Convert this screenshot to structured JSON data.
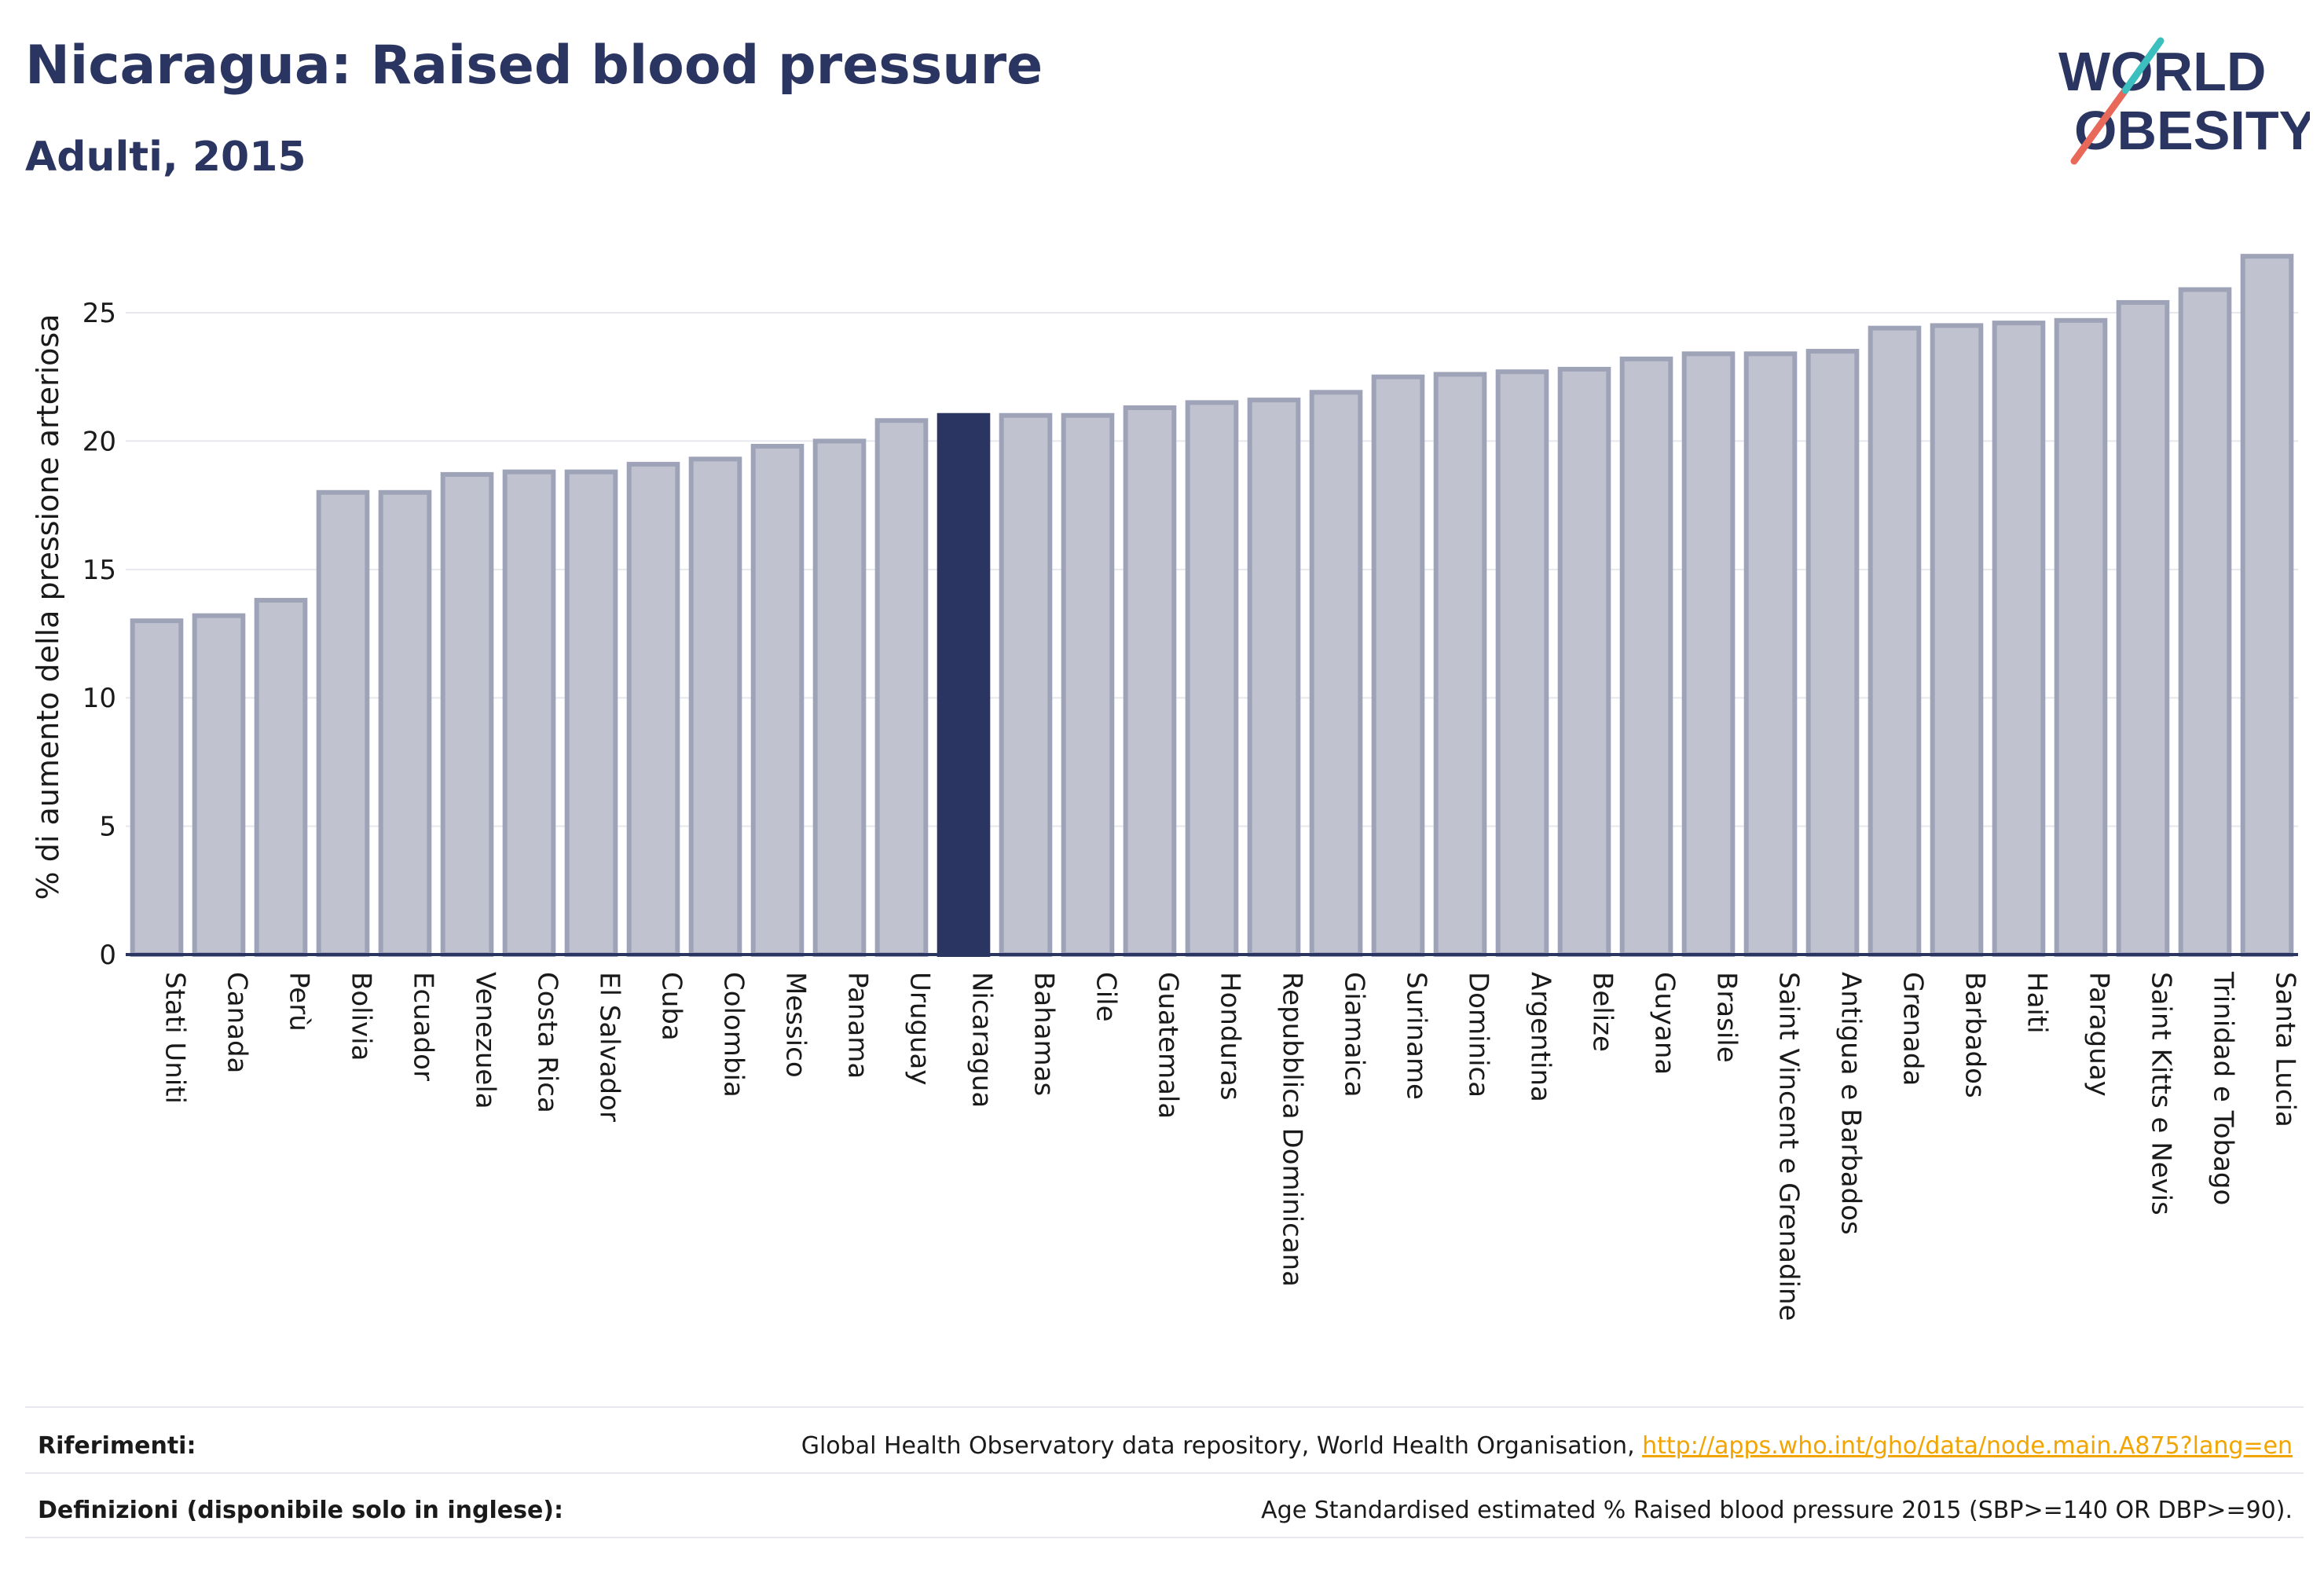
{
  "header": {
    "title": "Nicaragua: Raised blood pressure",
    "subtitle": "Adulti, 2015"
  },
  "logo": {
    "line1": "WORLD",
    "line2": "OBESITY",
    "colors": {
      "text": "#2b3561",
      "slash_red": "#e8685a",
      "slash_teal": "#3bbfbf"
    }
  },
  "chart_data": {
    "type": "bar",
    "ylabel": "% di aumento della pressione arteriosa",
    "xlabel": "",
    "ylim": [
      0,
      28
    ],
    "yticks": [
      0,
      5,
      10,
      15,
      20,
      25
    ],
    "grid": true,
    "highlight": "Nicaragua",
    "colors": {
      "bar": "#c0c3cf",
      "bar_edge": "#9ea3b8",
      "highlight": "#2b3561",
      "grid": "#e6e8ee",
      "axis": "#2b3561"
    },
    "categories": [
      "Stati Uniti",
      "Canada",
      "Perù",
      "Bolivia",
      "Ecuador",
      "Venezuela",
      "Costa Rica",
      "El Salvador",
      "Cuba",
      "Colombia",
      "Messico",
      "Panama",
      "Uruguay",
      "Nicaragua",
      "Bahamas",
      "Cile",
      "Guatemala",
      "Honduras",
      "Repubblica Dominicana",
      "Giamaica",
      "Suriname",
      "Dominica",
      "Argentina",
      "Belize",
      "Guyana",
      "Brasile",
      "Saint Vincent e Grenadine",
      "Antigua e Barbados",
      "Grenada",
      "Barbados",
      "Haiti",
      "Paraguay",
      "Saint Kitts e Nevis",
      "Trinidad e Tobago",
      "Santa Lucia"
    ],
    "values": [
      13.0,
      13.2,
      13.8,
      18.0,
      18.0,
      18.7,
      18.8,
      18.8,
      19.1,
      19.3,
      19.8,
      20.0,
      20.8,
      21.0,
      21.0,
      21.0,
      21.3,
      21.5,
      21.6,
      21.9,
      22.5,
      22.6,
      22.7,
      22.8,
      23.2,
      23.4,
      23.4,
      23.5,
      24.4,
      24.5,
      24.6,
      24.7,
      25.4,
      25.9,
      27.2
    ]
  },
  "footer": {
    "references_label": "Riferimenti:",
    "references_text": "Global Health Observatory data repository, World Health Organisation, ",
    "references_link": "http://apps.who.int/gho/data/node.main.A875?lang=en",
    "definitions_label": "Definizioni (disponibile solo in inglese):",
    "definitions_text": "Age Standardised estimated % Raised blood pressure 2015 (SBP>=140 OR DBP>=90)."
  }
}
